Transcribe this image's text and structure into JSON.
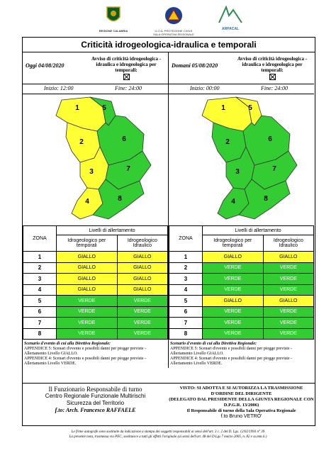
{
  "logos": {
    "regione": "REGIONE CALABRIA",
    "protezione_1": "U.O.A. PROTEZIONE CIVILE",
    "protezione_2": "SALA OPERATIVA REGIONALE",
    "arpacal": "ARPACAL"
  },
  "title": "Criticità idrogeologica-idraulica e temporali",
  "avviso_label": "Avviso di criticità idrogeologica - idraulica e idrogeologica per temporali:",
  "left": {
    "date": "Oggi 04/08/2020",
    "inizio": "Inizio: 12:00",
    "fine": "Fine: 24:00",
    "map_labels": [
      "1",
      "2",
      "3",
      "4",
      "5",
      "6",
      "7",
      "8"
    ],
    "zone_colors": [
      "#ffff33",
      "#ffff33",
      "#ffff33",
      "#ffff33",
      "#33cc33",
      "#33cc33",
      "#33cc33",
      "#33cc33"
    ],
    "rows": [
      {
        "zona": "1",
        "temp": "GIALLO",
        "idro": "GIALLO"
      },
      {
        "zona": "2",
        "temp": "GIALLO",
        "idro": "GIALLO"
      },
      {
        "zona": "3",
        "temp": "GIALLO",
        "idro": "GIALLO"
      },
      {
        "zona": "4",
        "temp": "GIALLO",
        "idro": "GIALLO"
      },
      {
        "zona": "5",
        "temp": "VERDE",
        "idro": "VERDE"
      },
      {
        "zona": "6",
        "temp": "VERDE",
        "idro": "VERDE"
      },
      {
        "zona": "7",
        "temp": "VERDE",
        "idro": "VERDE"
      },
      {
        "zona": "8",
        "temp": "VERDE",
        "idro": "VERDE"
      }
    ],
    "scenario_title": "Scenario d'evento di cui alla Direttiva Regionale:",
    "scenario_1": "APPENDICE 5: Scenari d'evento e possibili danni per piogge previste - Allertamento Livello GIALLO.",
    "scenario_2": "APPENDICE 4: Scenari d'evento e possibili danni per piogge previste - Allertamento Livello VERDE."
  },
  "right": {
    "date": "Domani 05/08/2020",
    "inizio": "Inizio: 00:00",
    "fine": "Fine: 24:00",
    "map_labels": [
      "1",
      "2",
      "3",
      "4",
      "5",
      "6",
      "7",
      "8"
    ],
    "zone_colors": [
      "#ffff33",
      "#33cc33",
      "#33cc33",
      "#33cc33",
      "#ffff33",
      "#33cc33",
      "#33cc33",
      "#33cc33"
    ],
    "rows": [
      {
        "zona": "1",
        "temp": "GIALLO",
        "idro": "GIALLO"
      },
      {
        "zona": "2",
        "temp": "VERDE",
        "idro": "VERDE"
      },
      {
        "zona": "3",
        "temp": "VERDE",
        "idro": "VERDE"
      },
      {
        "zona": "4",
        "temp": "VERDE",
        "idro": "VERDE"
      },
      {
        "zona": "5",
        "temp": "GIALLO",
        "idro": "GIALLO"
      },
      {
        "zona": "6",
        "temp": "VERDE",
        "idro": "VERDE"
      },
      {
        "zona": "7",
        "temp": "VERDE",
        "idro": "VERDE"
      },
      {
        "zona": "8",
        "temp": "VERDE",
        "idro": "VERDE"
      }
    ],
    "scenario_title": "Scenario d'evento di cui alla Direttiva Regionale:",
    "scenario_1": "APPENDICE 5: Scenari d'evento e possibili danni per piogge previste - Allertamento Livello GIALLO.",
    "scenario_2": "APPENDICE 4: Scenari d'evento e possibili danni per piogge previste - Allertamento Livello VERDE."
  },
  "table_headers": {
    "zona": "ZONA",
    "livelli": "Livelli di allertamento",
    "temp": "Idrogeologico per temporali",
    "idro": "Idrogeologico Idraulico"
  },
  "signature_left": {
    "l1": "Il Funzionario Responsabile di turno",
    "l2": "Centro Regionale Funzionale Multirischi",
    "l3": "Sicurezza del Territorio",
    "l4": "f.to: Arch. Francesco RAFFAELE"
  },
  "signature_right": {
    "l1": "VISTO: SI ADOTTA E SI AUTORIZZA LA TRASMISSIONE D'ORDINE DEL DIRIGENTE",
    "l2": "(DELEGATO DAL PRESIDENTE DELLA GIUNTA REGIONALE CON D.P.G.R. 13/2006)",
    "l3": "Il Responsabile di turno della Sala Operativa Regionale",
    "l4": "f.to Bruno VETRO'"
  },
  "footer_1": "Le firme autografe sono sostituite da indicazione a stampa dei soggetti responsabili ai sensi dell'art. 3 c. 2 del D. Lgs. 12/02/1993 n° 39",
  "footer_2": "La presente nota, trasmessa via PEC, sostituisce a tutti gli effetti l'originale (ai sensi dell'art. 48 del D.Lgs 7 marzo 2005, n. 82 e ss.mm.ii.)"
}
